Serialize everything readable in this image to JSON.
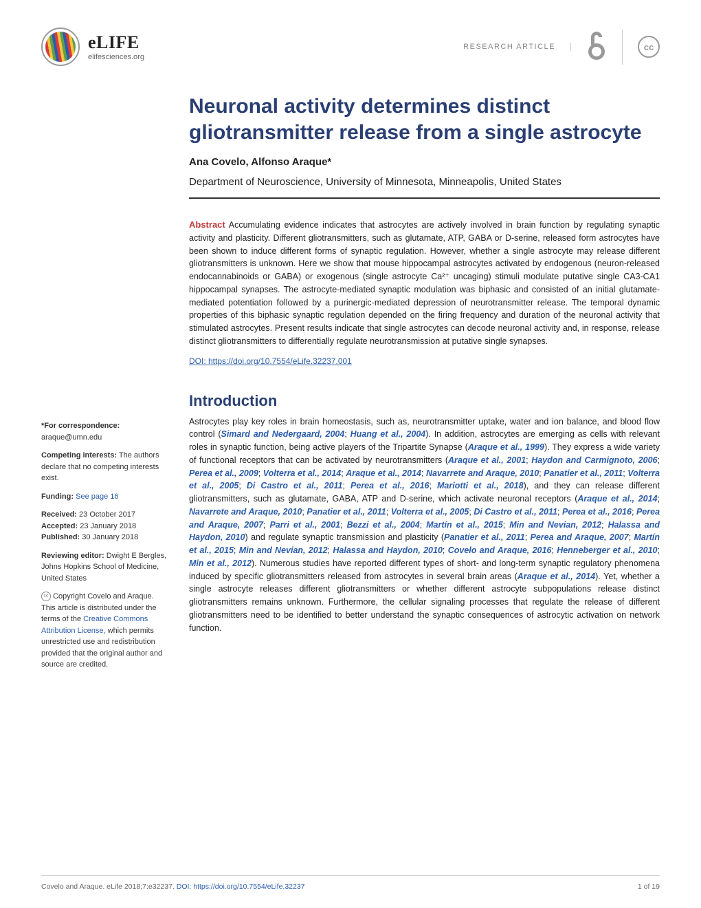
{
  "header": {
    "journal_name": "eLIFE",
    "journal_site": "elifesciences.org",
    "article_type": "RESEARCH ARTICLE",
    "oa_symbol": "∂",
    "cc_label": "cc"
  },
  "title": "Neuronal activity determines distinct gliotransmitter release from a single astrocyte",
  "authors": "Ana Covelo, Alfonso Araque*",
  "affiliation": "Department of Neuroscience, University of Minnesota, Minneapolis, United States",
  "abstract": {
    "label": "Abstract",
    "text": "Accumulating evidence indicates that astrocytes are actively involved in brain function by regulating synaptic activity and plasticity. Different gliotransmitters, such as glutamate, ATP, GABA or D-serine, released form astrocytes have been shown to induce different forms of synaptic regulation. However, whether a single astrocyte may release different gliotransmitters is unknown. Here we show that mouse hippocampal astrocytes activated by endogenous (neuron-released endocannabinoids or GABA) or exogenous (single astrocyte Ca²⁺ uncaging) stimuli modulate putative single CA3-CA1 hippocampal synapses. The astrocyte-mediated synaptic modulation was biphasic and consisted of an initial glutamate-mediated potentiation followed by a purinergic-mediated depression of neurotransmitter release. The temporal dynamic properties of this biphasic synaptic regulation depended on the firing frequency and duration of the neuronal activity that stimulated astrocytes. Present results indicate that single astrocytes can decode neuronal activity and, in response, release distinct gliotransmitters to differentially regulate neurotransmission at putative single synapses.",
    "doi": "DOI: https://doi.org/10.7554/eLife.32237.001"
  },
  "introduction": {
    "heading": "Introduction",
    "para": "Astrocytes play key roles in brain homeostasis, such as, neurotransmitter uptake, water and ion balance, and blood flow control (<span class='ref'>Simard and Nedergaard, 2004</span>; <span class='ref'>Huang et al., 2004</span>). In addition, astrocytes are emerging as cells with relevant roles in synaptic function, being active players of the Tripartite Synapse (<span class='ref'>Araque et al., 1999</span>). They express a wide variety of functional receptors that can be activated by neurotransmitters (<span class='ref'>Araque et al., 2001</span>; <span class='ref'>Haydon and Carmignoto, 2006</span>; <span class='ref'>Perea et al., 2009</span>; <span class='ref'>Volterra et al., 2014</span>; <span class='ref'>Araque et al., 2014</span>; <span class='ref'>Navarrete and Araque, 2010</span>; <span class='ref'>Panatier et al., 2011</span>; <span class='ref'>Volterra et al., 2005</span>; <span class='ref'>Di Castro et al., 2011</span>; <span class='ref'>Perea et al., 2016</span>; <span class='ref'>Mariotti et al., 2018</span>), and they can release different gliotransmitters, such as glutamate, GABA, ATP and D-serine, which activate neuronal receptors (<span class='ref'>Araque et al., 2014</span>; <span class='ref'>Navarrete and Araque, 2010</span>; <span class='ref'>Panatier et al., 2011</span>; <span class='ref'>Volterra et al., 2005</span>; <span class='ref'>Di Castro et al., 2011</span>; <span class='ref'>Perea et al., 2016</span>; <span class='ref'>Perea and Araque, 2007</span>; <span class='ref'>Parri et al., 2001</span>; <span class='ref'>Bezzi et al., 2004</span>; <span class='ref'>Martín et al., 2015</span>; <span class='ref'>Min and Nevian, 2012</span>; <span class='ref'>Halassa and Haydon, 2010</span>) and regulate synaptic transmission and plasticity (<span class='ref'>Panatier et al., 2011</span>; <span class='ref'>Perea and Araque, 2007</span>; <span class='ref'>Martín et al., 2015</span>; <span class='ref'>Min and Nevian, 2012</span>; <span class='ref'>Halassa and Haydon, 2010</span>; <span class='ref'>Covelo and Araque, 2016</span>; <span class='ref'>Henneberger et al., 2010</span>; <span class='ref'>Min et al., 2012</span>). Numerous studies have reported different types of short- and long-term synaptic regulatory phenomena induced by specific gliotransmitters released from astrocytes in several brain areas (<span class='ref'>Araque et al., 2014</span>). Yet, whether a single astrocyte releases different gliotransmitters or whether different astrocyte subpopulations release distinct gliotransmitters remains unknown. Furthermore, the cellular signaling processes that regulate the release of different gliotransmitters need to be identified to better understand the synaptic consequences of astrocytic activation on network function."
  },
  "sidebar": {
    "corr_label": "*For correspondence:",
    "corr_email": "araque@umn.edu",
    "compete_label": "Competing interests:",
    "compete_text": " The authors declare that no competing interests exist.",
    "funding_label": "Funding:",
    "funding_link": "See page 16",
    "received_label": "Received:",
    "received_date": " 23 October 2017",
    "accepted_label": "Accepted:",
    "accepted_date": " 23 January 2018",
    "published_label": "Published:",
    "published_date": " 30 January 2018",
    "editor_label": "Reviewing editor:",
    "editor_text": " Dwight E Bergles, Johns Hopkins School of Medicine, United States",
    "copyright_pre": " Copyright Covelo and Araque. This article is distributed under the terms of the ",
    "license_link": "Creative Commons Attribution License,",
    "copyright_post": " which permits unrestricted use and redistribution provided that the original author and source are credited."
  },
  "footer": {
    "citation": "Covelo and Araque. eLife 2018;7:e32237. ",
    "doi_label": "DOI: https://doi.org/10.7554/eLife.32237",
    "page": "1 of 19"
  },
  "colors": {
    "title_color": "#2a3f73",
    "link_color": "#2a5caa",
    "abstract_label_color": "#c13b3b"
  },
  "typography": {
    "title_fontsize": 30,
    "body_fontsize": 12.5,
    "sidebar_fontsize": 11,
    "section_head_fontsize": 22
  }
}
